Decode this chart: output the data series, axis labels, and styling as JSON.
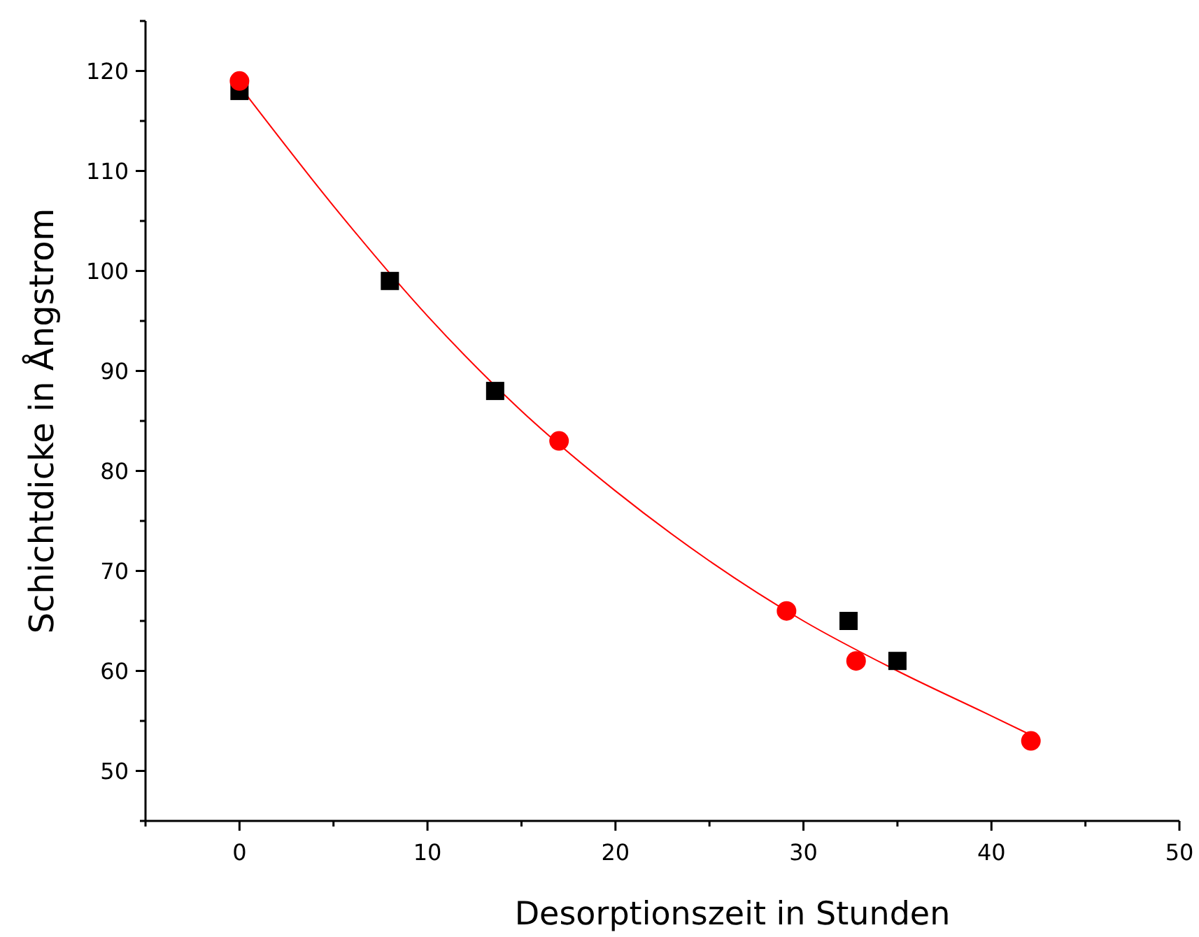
{
  "chart_data": {
    "type": "scatter",
    "xlabel": "Desorptionszeit in Stunden",
    "ylabel": "Schichtdicke in Ångstrom",
    "xlim": [
      -5,
      50
    ],
    "ylim": [
      45,
      125
    ],
    "xticks": [
      {
        "value": -5,
        "label": null
      },
      0,
      {
        "value": 5,
        "label": null
      },
      10,
      {
        "value": 15,
        "label": null
      },
      20,
      {
        "value": 25,
        "label": null
      },
      30,
      {
        "value": 35,
        "label": null
      },
      40,
      {
        "value": 45,
        "label": null
      },
      50
    ],
    "yticks": [
      {
        "value": 45,
        "label": null
      },
      50,
      {
        "value": 55,
        "label": null
      },
      60,
      {
        "value": 65,
        "label": null
      },
      70,
      {
        "value": 75,
        "label": null
      },
      80,
      {
        "value": 85,
        "label": null
      },
      90,
      {
        "value": 95,
        "label": null
      },
      100,
      {
        "value": 105,
        "label": null
      },
      110,
      {
        "value": 115,
        "label": null
      },
      120,
      {
        "value": 125,
        "label": null
      }
    ],
    "grid": false,
    "series": [
      {
        "type": "line",
        "color": "#ff0000",
        "marker": "none",
        "line_style": "solid",
        "x": [
          0,
          5,
          10,
          15,
          20,
          25,
          30,
          35,
          40,
          42.2
        ],
        "values": [
          118.5,
          106.5,
          95.5,
          86,
          78,
          71,
          65,
          60,
          55.5,
          53.5
        ]
      },
      {
        "color": "#000000",
        "marker": "square",
        "x": [
          0,
          8,
          13.6,
          32.4,
          35
        ],
        "values": [
          118,
          99,
          88,
          65,
          61
        ]
      },
      {
        "color": "#ff0000",
        "marker": "circle",
        "x": [
          0,
          17,
          29.1,
          32.8,
          42.1
        ],
        "values": [
          119,
          83,
          66,
          61,
          53
        ]
      }
    ]
  }
}
